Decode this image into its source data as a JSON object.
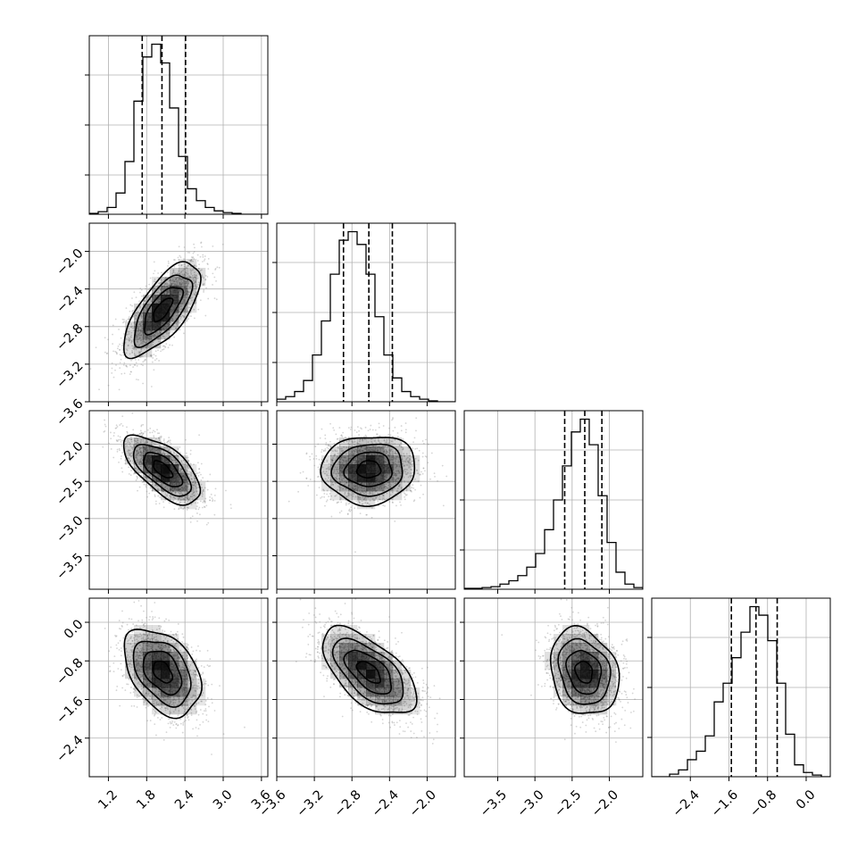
{
  "chart_data": {
    "type": "corner",
    "parameters": [
      {
        "range": [
          0.9,
          3.7
        ],
        "ticks": [
          1.2,
          1.8,
          2.4,
          3.0,
          3.6
        ],
        "tick_labels": [
          "1.2",
          "1.8",
          "2.4",
          "3.0",
          "3.6"
        ],
        "quantiles": [
          1.73,
          2.04,
          2.41
        ],
        "mean": 2.05,
        "sd": 0.3,
        "histogram": {
          "bin_edges": [
            0.9,
            1.04,
            1.18,
            1.32,
            1.46,
            1.6,
            1.74,
            1.88,
            2.02,
            2.16,
            2.3,
            2.44,
            2.58,
            2.72,
            2.86,
            3.0,
            3.14,
            3.28,
            3.42,
            3.56,
            3.7
          ],
          "counts": [
            1,
            3,
            8,
            25,
            62,
            133,
            185,
            200,
            178,
            125,
            68,
            30,
            16,
            8,
            4,
            2,
            1,
            0,
            0,
            0
          ]
        }
      },
      {
        "range": [
          -3.6,
          -1.7
        ],
        "ticks": [
          -3.6,
          -3.2,
          -2.8,
          -2.4,
          -2.0
        ],
        "tick_labels": [
          "−3.6",
          "−3.2",
          "−2.8",
          "−2.4",
          "−2.0"
        ],
        "quantiles": [
          -2.89,
          -2.62,
          -2.37
        ],
        "mean": -2.62,
        "sd": 0.25,
        "histogram": {
          "bin_edges": [
            -3.6,
            -3.505,
            -3.41,
            -3.315,
            -3.22,
            -3.125,
            -3.03,
            -2.935,
            -2.84,
            -2.745,
            -2.65,
            -2.555,
            -2.46,
            -2.365,
            -2.27,
            -2.175,
            -2.08,
            -1.985,
            -1.89,
            -1.795,
            -1.7
          ],
          "counts": [
            3,
            6,
            12,
            25,
            55,
            95,
            150,
            190,
            200,
            185,
            150,
            100,
            55,
            28,
            12,
            6,
            3,
            1,
            0,
            0
          ]
        }
      },
      {
        "range": [
          -3.95,
          -1.55
        ],
        "ticks": [
          -3.5,
          -3.0,
          -2.5,
          -2.0
        ],
        "tick_labels": [
          "−3.5",
          "−3.0",
          "−2.5",
          "−2.0"
        ],
        "quantiles": [
          -2.6,
          -2.33,
          -2.1
        ],
        "mean": -2.34,
        "sd": 0.23,
        "histogram": {
          "bin_edges": [
            -3.95,
            -3.83,
            -3.71,
            -3.59,
            -3.47,
            -3.35,
            -3.23,
            -3.11,
            -2.99,
            -2.87,
            -2.75,
            -2.63,
            -2.51,
            -2.39,
            -2.27,
            -2.15,
            -2.03,
            -1.91,
            -1.79,
            -1.67,
            -1.55
          ],
          "counts": [
            1,
            1,
            2,
            3,
            6,
            10,
            16,
            26,
            42,
            70,
            105,
            145,
            185,
            200,
            170,
            110,
            55,
            20,
            6,
            2
          ]
        }
      },
      {
        "range": [
          -3.2,
          0.5
        ],
        "ticks": [
          -2.4,
          -1.6,
          -0.8,
          0.0
        ],
        "tick_labels": [
          "−2.4",
          "−1.6",
          "−0.8",
          "0.0"
        ],
        "quantiles": [
          -1.55,
          -1.04,
          -0.6
        ],
        "mean": -1.03,
        "sd": 0.45,
        "histogram": {
          "bin_edges": [
            -3.2,
            -3.015,
            -2.83,
            -2.645,
            -2.46,
            -2.275,
            -2.09,
            -1.905,
            -1.72,
            -1.535,
            -1.35,
            -1.165,
            -0.98,
            -0.795,
            -0.61,
            -0.425,
            -0.24,
            -0.055,
            0.13,
            0.315,
            0.5
          ],
          "counts": [
            0,
            0,
            3,
            8,
            20,
            30,
            48,
            88,
            110,
            140,
            170,
            200,
            190,
            160,
            110,
            50,
            14,
            5,
            2,
            0
          ]
        }
      }
    ],
    "pairs": [
      {
        "row": 1,
        "col": 0,
        "correlation": 0.7
      },
      {
        "row": 2,
        "col": 0,
        "correlation": -0.65
      },
      {
        "row": 2,
        "col": 1,
        "correlation": 0.05
      },
      {
        "row": 3,
        "col": 0,
        "correlation": -0.4
      },
      {
        "row": 3,
        "col": 1,
        "correlation": -0.6
      },
      {
        "row": 3,
        "col": 2,
        "correlation": -0.2
      }
    ],
    "contour_levels_sigma": [
      0.5,
      1.0,
      1.5,
      2.0
    ],
    "grid": true,
    "colors": {
      "line": "#000000",
      "points": "#888888",
      "density": "#000000",
      "grid": "#b0b0b0"
    }
  }
}
